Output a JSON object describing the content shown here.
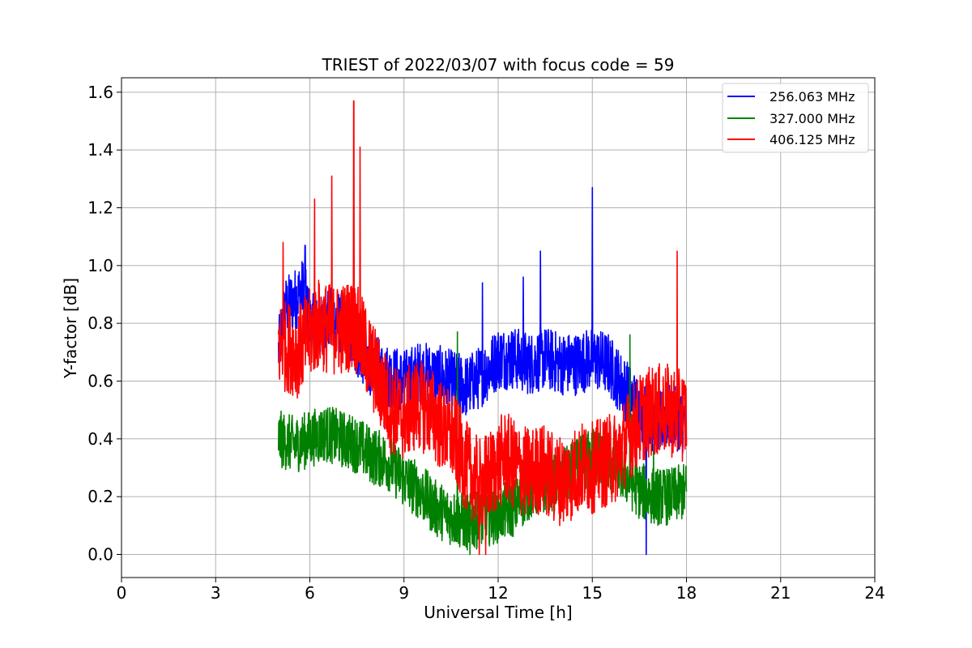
{
  "chart_data": {
    "type": "line",
    "title": "TRIEST of 2022/03/07 with focus code = 59",
    "xlabel": "Universal Time [h]",
    "ylabel": "Y-factor [dB]",
    "xlim": [
      0,
      24
    ],
    "ylim": [
      -0.08,
      1.65
    ],
    "xticks": [
      0,
      3,
      6,
      9,
      12,
      15,
      18,
      21,
      24
    ],
    "yticks": [
      0.0,
      0.2,
      0.4,
      0.6,
      0.8,
      1.0,
      1.2,
      1.4,
      1.6
    ],
    "xtick_labels": [
      "0",
      "3",
      "6",
      "9",
      "12",
      "15",
      "18",
      "21",
      "24"
    ],
    "ytick_labels": [
      "0.0",
      "0.2",
      "0.4",
      "0.6",
      "0.8",
      "1.0",
      "1.2",
      "1.4",
      "1.6"
    ],
    "grid": true,
    "legend_position": "top-right",
    "series": [
      {
        "name": "256.063 MHz",
        "color": "#0000ff",
        "noise": 0.11,
        "x": [
          5.0,
          5.2,
          5.5,
          5.8,
          6.0,
          6.3,
          6.6,
          7.0,
          7.5,
          8.0,
          8.5,
          9.0,
          9.5,
          10.0,
          10.5,
          11.0,
          11.5,
          12.0,
          12.5,
          13.0,
          13.5,
          14.0,
          14.5,
          15.0,
          15.5,
          16.0,
          16.5,
          17.0,
          17.5,
          18.0
        ],
        "y": [
          0.7,
          0.85,
          0.88,
          0.92,
          0.8,
          0.78,
          0.82,
          0.8,
          0.72,
          0.65,
          0.62,
          0.6,
          0.63,
          0.62,
          0.6,
          0.58,
          0.62,
          0.68,
          0.68,
          0.66,
          0.68,
          0.66,
          0.66,
          0.68,
          0.66,
          0.58,
          0.5,
          0.45,
          0.48,
          0.45
        ],
        "peaks": [
          [
            5.85,
            1.07
          ],
          [
            13.35,
            1.05
          ],
          [
            15.0,
            1.27
          ],
          [
            16.72,
            0.0
          ],
          [
            11.5,
            0.94
          ],
          [
            12.8,
            0.96
          ]
        ]
      },
      {
        "name": "327.000 MHz",
        "color": "#008000",
        "noise": 0.1,
        "x": [
          5.0,
          5.5,
          6.0,
          6.5,
          7.0,
          7.5,
          8.0,
          8.5,
          9.0,
          9.5,
          10.0,
          10.5,
          11.0,
          11.5,
          12.0,
          12.5,
          13.0,
          13.5,
          14.0,
          14.5,
          15.0,
          15.5,
          16.0,
          16.5,
          17.0,
          17.5,
          18.0
        ],
        "y": [
          0.4,
          0.38,
          0.4,
          0.42,
          0.4,
          0.38,
          0.34,
          0.32,
          0.26,
          0.22,
          0.16,
          0.13,
          0.11,
          0.12,
          0.14,
          0.16,
          0.22,
          0.24,
          0.26,
          0.3,
          0.34,
          0.32,
          0.28,
          0.22,
          0.2,
          0.2,
          0.22
        ],
        "peaks": [
          [
            10.7,
            0.77
          ],
          [
            16.2,
            0.76
          ],
          [
            11.1,
            0.0
          ],
          [
            16.95,
            0.38
          ]
        ]
      },
      {
        "name": "406.125 MHz",
        "color": "#ff0000",
        "noise": 0.16,
        "x": [
          5.0,
          5.3,
          5.6,
          6.0,
          6.3,
          6.6,
          7.0,
          7.4,
          7.8,
          8.2,
          8.6,
          9.0,
          9.4,
          9.8,
          10.2,
          10.6,
          11.0,
          11.4,
          11.8,
          12.2,
          12.6,
          13.0,
          13.4,
          13.8,
          14.2,
          14.6,
          15.0,
          15.4,
          15.8,
          16.2,
          16.6,
          17.0,
          17.4,
          17.8,
          18.0
        ],
        "y": [
          0.72,
          0.72,
          0.7,
          0.76,
          0.8,
          0.78,
          0.78,
          0.8,
          0.7,
          0.6,
          0.5,
          0.48,
          0.52,
          0.5,
          0.44,
          0.4,
          0.3,
          0.24,
          0.28,
          0.34,
          0.3,
          0.28,
          0.3,
          0.26,
          0.26,
          0.3,
          0.3,
          0.32,
          0.34,
          0.42,
          0.48,
          0.5,
          0.5,
          0.48,
          0.48
        ],
        "peaks": [
          [
            5.15,
            1.08
          ],
          [
            6.15,
            1.23
          ],
          [
            6.7,
            1.31
          ],
          [
            7.4,
            1.57
          ],
          [
            7.6,
            1.41
          ],
          [
            17.7,
            1.05
          ],
          [
            11.4,
            0.0
          ],
          [
            11.6,
            0.0
          ]
        ]
      }
    ]
  }
}
